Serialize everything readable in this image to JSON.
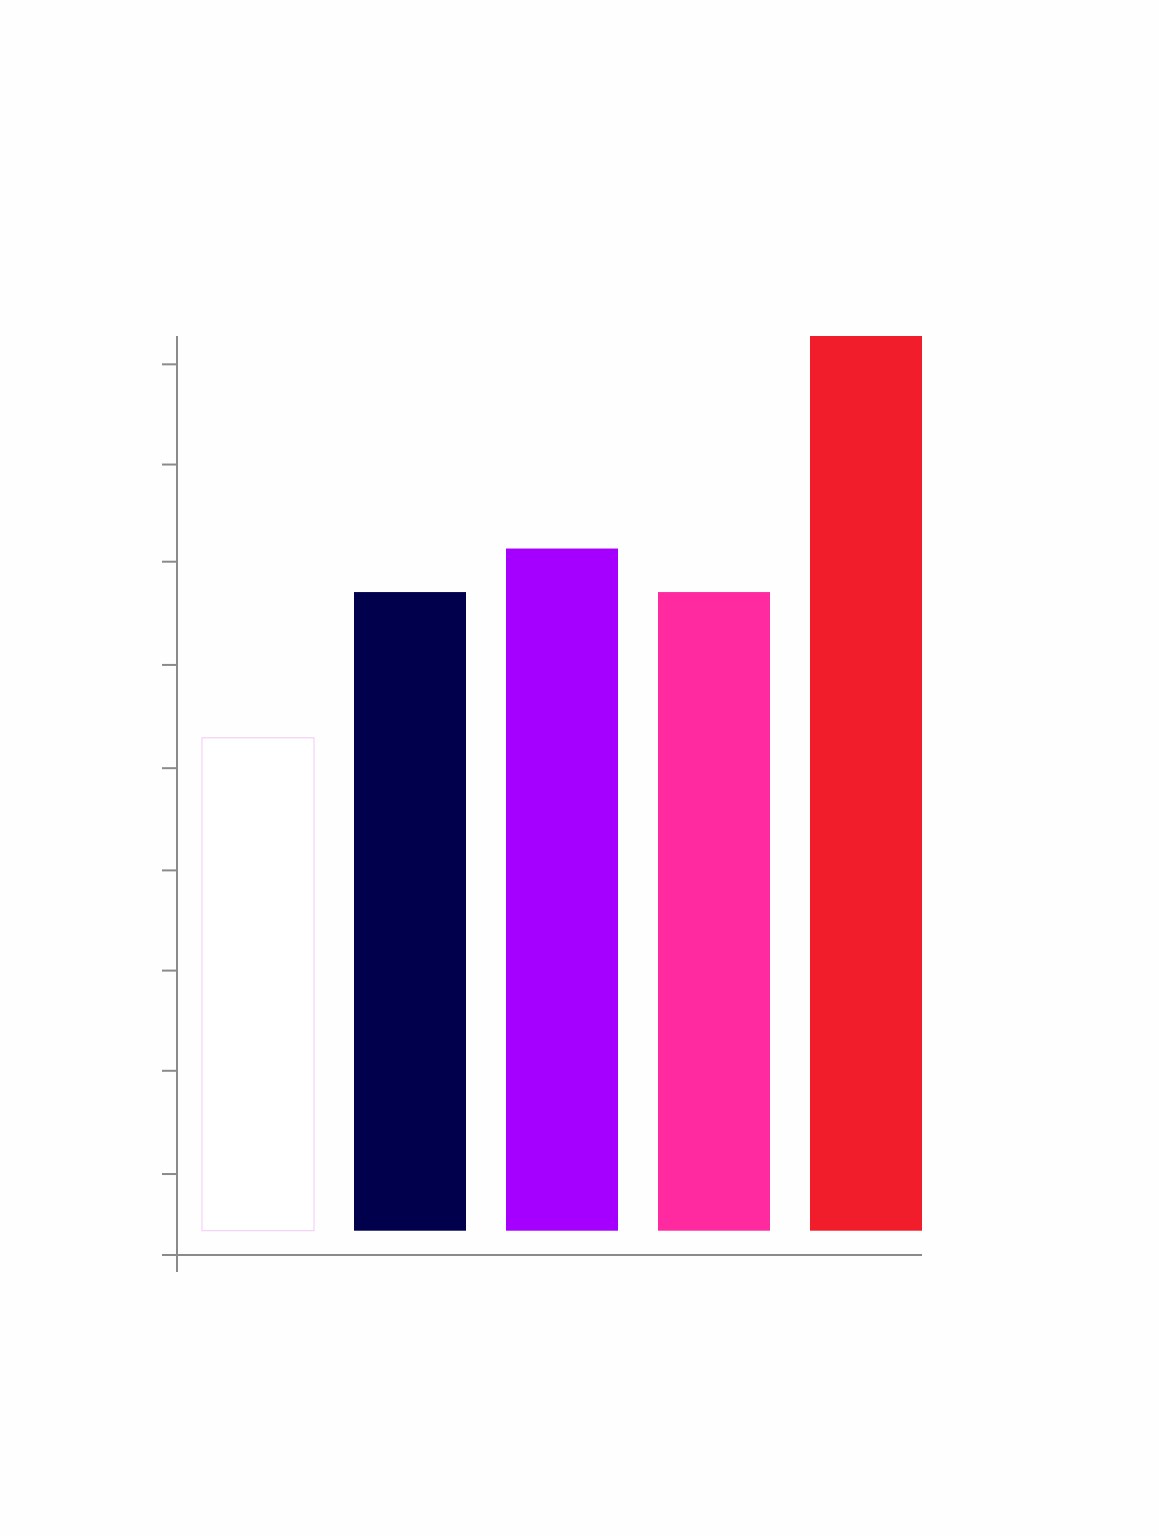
{
  "chart_data": {
    "type": "bar",
    "categories": [
      null,
      null,
      null,
      null,
      null
    ],
    "values": [
      4.87,
      6.31,
      6.74,
      6.31,
      8.84
    ],
    "colors": [
      "#ffffff",
      "#00004d",
      "#a500ff",
      "#ff2a9f",
      "#f21d2a"
    ],
    "ylim": [
      -0.24,
      8.84
    ],
    "yticks": [
      0.56,
      1.58,
      2.57,
      3.56,
      4.57,
      5.59,
      6.61,
      7.57,
      8.56
    ],
    "grid": false
  }
}
